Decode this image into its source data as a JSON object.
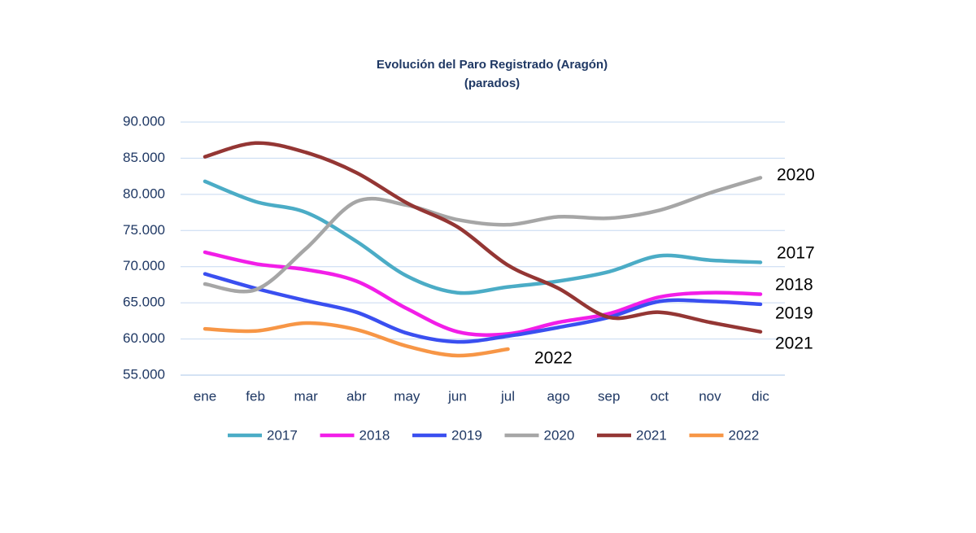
{
  "chart_data": {
    "type": "line",
    "title": "Evolución del Paro Registrado (Aragón)",
    "subtitle": "(parados)",
    "categories": [
      "ene",
      "feb",
      "mar",
      "abr",
      "may",
      "jun",
      "jul",
      "ago",
      "sep",
      "oct",
      "nov",
      "dic"
    ],
    "series": [
      {
        "name": "2017",
        "color": "#4bacc6",
        "values": [
          81800,
          79000,
          77500,
          73500,
          68700,
          66400,
          67200,
          68000,
          69300,
          71500,
          70900,
          70600
        ]
      },
      {
        "name": "2018",
        "color": "#f21ee8",
        "values": [
          72000,
          70400,
          69600,
          68000,
          64200,
          61000,
          60700,
          62300,
          63500,
          65800,
          66400,
          66200
        ]
      },
      {
        "name": "2019",
        "color": "#3a4ff0",
        "values": [
          69000,
          67000,
          65300,
          63700,
          60800,
          59600,
          60400,
          61600,
          63000,
          65200,
          65200,
          64800
        ]
      },
      {
        "name": "2020",
        "color": "#a6a6a6",
        "values": [
          67600,
          66800,
          72500,
          79000,
          78500,
          76500,
          75800,
          76900,
          76700,
          77800,
          80200,
          82300
        ]
      },
      {
        "name": "2021",
        "color": "#943634",
        "values": [
          85200,
          87100,
          85800,
          83000,
          78800,
          75500,
          70200,
          67000,
          63000,
          63700,
          62300,
          61000
        ]
      },
      {
        "name": "2022",
        "color": "#f79646",
        "values": [
          61400,
          61100,
          62200,
          61300,
          59000,
          57700,
          58600,
          null,
          null,
          null,
          null,
          null
        ]
      }
    ],
    "ylim": [
      55000,
      90000
    ],
    "yticks": [
      {
        "value": 55000,
        "label": "55.000"
      },
      {
        "value": 60000,
        "label": "60.000"
      },
      {
        "value": 65000,
        "label": "65.000"
      },
      {
        "value": 70000,
        "label": "70.000"
      },
      {
        "value": 75000,
        "label": "75.000"
      },
      {
        "value": 80000,
        "label": "80.000"
      },
      {
        "value": 85000,
        "label": "85.000"
      },
      {
        "value": 90000,
        "label": "90.000"
      }
    ],
    "grid": true
  }
}
